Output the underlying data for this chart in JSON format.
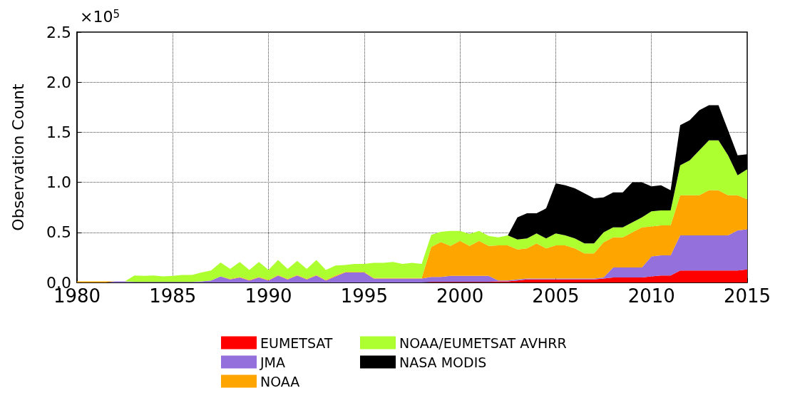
{
  "chart_data": {
    "type": "area",
    "stacked": true,
    "ylabel": "Observation Count",
    "annotations": [
      "×10$^{5}$"
    ],
    "x": [
      1980,
      1980.5,
      1981,
      1981.5,
      1982,
      1982.5,
      1983,
      1983.5,
      1984,
      1984.5,
      1985,
      1985.5,
      1986,
      1986.5,
      1987,
      1987.5,
      1988,
      1988.5,
      1989,
      1989.5,
      1990,
      1990.5,
      1991,
      1991.5,
      1992,
      1992.5,
      1993,
      1993.5,
      1994,
      1994.5,
      1995,
      1995.5,
      1996,
      1996.5,
      1997,
      1997.5,
      1998,
      1998.5,
      1999,
      1999.5,
      2000,
      2000.5,
      2001,
      2001.5,
      2002,
      2002.5,
      2003,
      2003.5,
      2004,
      2004.5,
      2005,
      2005.5,
      2006,
      2006.5,
      2007,
      2007.5,
      2008,
      2008.5,
      2009,
      2009.5,
      2010,
      2010.5,
      2011,
      2011.5,
      2012,
      2012.5,
      2013,
      2013.5,
      2014,
      2014.5,
      2015
    ],
    "series": [
      {
        "name": "EUMETSAT",
        "color": "#ff0000",
        "values": [
          0,
          0,
          0,
          0,
          0,
          0,
          0,
          0,
          0,
          0,
          0,
          0,
          0,
          0,
          0,
          0,
          0,
          0,
          0,
          0,
          0,
          0,
          0,
          0,
          0,
          0,
          0,
          0,
          0,
          0,
          0,
          0,
          0,
          0,
          0,
          0,
          0,
          0.005,
          0.005,
          0.005,
          0.005,
          0.005,
          0.005,
          0.005,
          0.01,
          0.01,
          0.02,
          0.03,
          0.03,
          0.03,
          0.03,
          0.03,
          0.03,
          0.03,
          0.03,
          0.04,
          0.05,
          0.05,
          0.05,
          0.05,
          0.06,
          0.07,
          0.07,
          0.12,
          0.12,
          0.12,
          0.12,
          0.12,
          0.12,
          0.12,
          0.13
        ]
      },
      {
        "name": "JMA",
        "color": "#9370db",
        "values": [
          0,
          0,
          0,
          0,
          0.01,
          0.01,
          0.005,
          0.005,
          0.005,
          0.005,
          0.005,
          0.005,
          0.005,
          0.01,
          0.02,
          0.06,
          0.03,
          0.05,
          0.02,
          0.05,
          0.02,
          0.07,
          0.03,
          0.07,
          0.03,
          0.07,
          0.02,
          0.06,
          0.1,
          0.1,
          0.1,
          0.04,
          0.04,
          0.04,
          0.04,
          0.04,
          0.04,
          0.05,
          0.05,
          0.06,
          0.06,
          0.06,
          0.06,
          0.06,
          0.01,
          0.01,
          0.01,
          0.01,
          0.01,
          0.01,
          0.01,
          0.01,
          0.01,
          0.01,
          0.01,
          0.01,
          0.1,
          0.1,
          0.1,
          0.1,
          0.2,
          0.2,
          0.2,
          0.35,
          0.35,
          0.35,
          0.35,
          0.35,
          0.35,
          0.4,
          0.4
        ]
      },
      {
        "name": "NOAA",
        "color": "#ffa500",
        "values": [
          0.01,
          0.01,
          0.01,
          0.01,
          0,
          0,
          0,
          0,
          0,
          0,
          0,
          0,
          0,
          0,
          0,
          0,
          0.005,
          0.005,
          0.005,
          0.005,
          0.005,
          0.005,
          0.005,
          0.005,
          0.005,
          0.005,
          0.005,
          0.01,
          0.005,
          0.005,
          0.005,
          0.005,
          0.005,
          0.005,
          0.005,
          0.005,
          0.005,
          0.3,
          0.35,
          0.3,
          0.35,
          0.3,
          0.35,
          0.3,
          0.35,
          0.35,
          0.3,
          0.3,
          0.35,
          0.3,
          0.33,
          0.33,
          0.3,
          0.25,
          0.25,
          0.35,
          0.3,
          0.3,
          0.35,
          0.4,
          0.3,
          0.3,
          0.3,
          0.4,
          0.4,
          0.4,
          0.45,
          0.45,
          0.4,
          0.35,
          0.3
        ]
      },
      {
        "name": "NOAA/EUMETSAT AVHRR",
        "color": "#adff2f",
        "values": [
          0,
          0,
          0,
          0,
          0,
          0,
          0.065,
          0.06,
          0.065,
          0.055,
          0.06,
          0.07,
          0.07,
          0.09,
          0.1,
          0.14,
          0.1,
          0.15,
          0.1,
          0.15,
          0.1,
          0.15,
          0.1,
          0.14,
          0.1,
          0.15,
          0.1,
          0.1,
          0.07,
          0.08,
          0.08,
          0.15,
          0.15,
          0.16,
          0.14,
          0.15,
          0.14,
          0.12,
          0.1,
          0.15,
          0.1,
          0.12,
          0.1,
          0.1,
          0.08,
          0.1,
          0.1,
          0.1,
          0.1,
          0.1,
          0.12,
          0.1,
          0.1,
          0.1,
          0.1,
          0.1,
          0.1,
          0.1,
          0.1,
          0.1,
          0.15,
          0.15,
          0.15,
          0.3,
          0.35,
          0.45,
          0.5,
          0.5,
          0.4,
          0.2,
          0.3
        ]
      },
      {
        "name": "NASA MODIS",
        "color": "#000000",
        "values": [
          0,
          0,
          0,
          0,
          0,
          0,
          0,
          0,
          0,
          0,
          0,
          0,
          0,
          0,
          0,
          0,
          0,
          0,
          0,
          0,
          0,
          0,
          0,
          0,
          0,
          0,
          0,
          0,
          0,
          0,
          0,
          0,
          0,
          0,
          0,
          0,
          0,
          0,
          0,
          0,
          0,
          0,
          0,
          0,
          0,
          0,
          0.22,
          0.25,
          0.2,
          0.3,
          0.5,
          0.5,
          0.5,
          0.5,
          0.45,
          0.35,
          0.35,
          0.35,
          0.4,
          0.35,
          0.25,
          0.25,
          0.2,
          0.4,
          0.4,
          0.4,
          0.35,
          0.35,
          0.25,
          0.2,
          0.15
        ]
      }
    ],
    "xlim": [
      1980,
      2015
    ],
    "xticks": [
      1980,
      1985,
      1990,
      1995,
      2000,
      2005,
      2010,
      2015
    ],
    "ylim": [
      0,
      2.5
    ],
    "yticks": [
      {
        "value": 0,
        "label": "0.0"
      },
      0.5,
      {
        "value": 1,
        "label": "1.0"
      },
      1.5,
      {
        "value": 2,
        "label": "2.0"
      },
      2.5
    ],
    "grid": true,
    "legend": "bottom"
  }
}
